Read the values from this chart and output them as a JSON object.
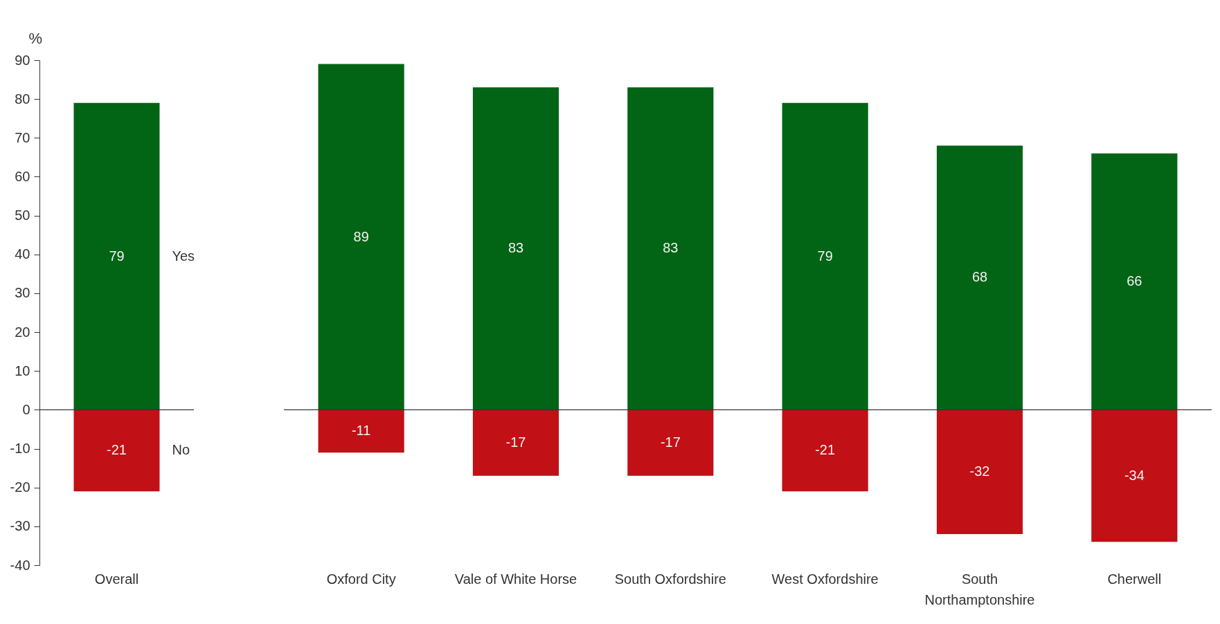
{
  "chart_data": [
    {
      "type": "bar",
      "stacked": true,
      "ylabel": "%",
      "categories": [
        "Overall"
      ],
      "series": [
        {
          "name": "Yes",
          "color": "#026415",
          "values": [
            79
          ]
        },
        {
          "name": "No",
          "color": "#c11016",
          "values": [
            -21
          ]
        }
      ],
      "ylim": [
        -40,
        90
      ],
      "yticks": [
        -40,
        -30,
        -20,
        -10,
        0,
        10,
        20,
        30,
        40,
        50,
        60,
        70,
        80,
        90
      ],
      "data_labels": true,
      "ref_lines": [
        {
          "axis": "y",
          "value": 0
        }
      ]
    },
    {
      "type": "bar",
      "stacked": true,
      "categories": [
        "Oxford City",
        "Vale of White Horse",
        "South Oxfordshire",
        "West Oxfordshire",
        "South Northamptonshire",
        "Cherwell"
      ],
      "series": [
        {
          "color": "#026415",
          "values": [
            89,
            83,
            83,
            79,
            68,
            66
          ]
        },
        {
          "color": "#c11016",
          "values": [
            -11,
            -17,
            -17,
            -21,
            -32,
            -34
          ]
        }
      ],
      "ylim": [
        -40,
        90
      ],
      "yticks": [
        -40,
        -30,
        -20,
        -10,
        0,
        10,
        20,
        30,
        40,
        50,
        60,
        70,
        80,
        90
      ],
      "data_labels": true,
      "tick_labels": "x",
      "ref_lines": [
        {
          "axis": "y",
          "value": 0
        }
      ]
    }
  ]
}
